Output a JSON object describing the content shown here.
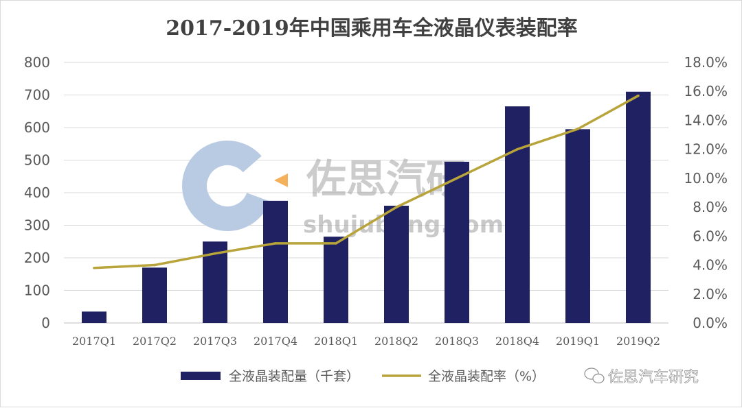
{
  "chart_data": {
    "type": "bar",
    "title": "2017-2019年中国乘用车全液晶仪表装配率",
    "categories": [
      "2017Q1",
      "2017Q2",
      "2017Q3",
      "2017Q4",
      "2018Q1",
      "2018Q2",
      "2018Q3",
      "2018Q4",
      "2019Q1",
      "2019Q2"
    ],
    "series": [
      {
        "name": "全液晶装配量（千套）",
        "type": "bar",
        "axis": "left",
        "color": "#1f2163",
        "values": [
          35,
          170,
          250,
          375,
          265,
          360,
          495,
          665,
          595,
          710
        ]
      },
      {
        "name": "全液晶装配率（%）",
        "type": "line",
        "axis": "right",
        "color": "#b8a43a",
        "values": [
          3.8,
          4.0,
          4.8,
          5.5,
          5.5,
          8.0,
          10.0,
          12.0,
          13.4,
          15.7
        ]
      }
    ],
    "y_left": {
      "min": 0,
      "max": 800,
      "step": 100,
      "ticks": [
        "0",
        "100",
        "200",
        "300",
        "400",
        "500",
        "600",
        "700",
        "800"
      ]
    },
    "y_right": {
      "min": 0,
      "max": 18,
      "step": 2,
      "ticks": [
        "0.0%",
        "2.0%",
        "4.0%",
        "6.0%",
        "8.0%",
        "10.0%",
        "12.0%",
        "14.0%",
        "16.0%",
        "18.0%"
      ]
    },
    "grid": true,
    "legend_position": "bottom"
  },
  "watermark": {
    "text": "佐思汽研",
    "url": "shujubang.com",
    "logo_color": "#b9cbe3",
    "logo_accent": "#f5b15a"
  },
  "brand": {
    "text": "佐思汽车研究",
    "icon": "wechat-icon"
  }
}
